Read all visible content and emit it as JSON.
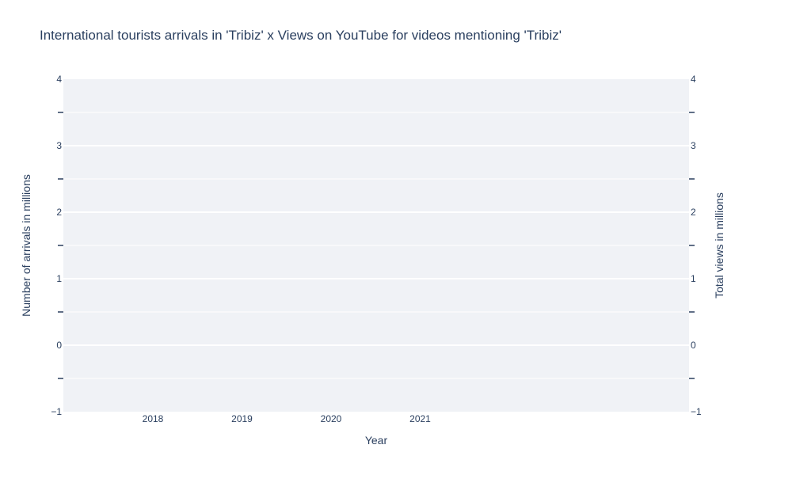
{
  "chart_data": {
    "type": "line",
    "title": "International tourists arrivals in 'Tribiz' x Views on YouTube for videos mentioning 'Tribiz'",
    "xlabel": "Year",
    "ylabel": "Number of arrivals in millions",
    "y2label": "Total views in millions",
    "x_ticks": [
      "2018",
      "2019",
      "2020",
      "2021"
    ],
    "y_ticks": [
      "−1",
      "0",
      "1",
      "2",
      "3",
      "4"
    ],
    "y2_ticks": [
      "−1",
      "0",
      "1",
      "2",
      "3",
      "4"
    ],
    "ylim": [
      -1,
      4
    ],
    "y2lim": [
      -1,
      4
    ],
    "grid": true,
    "series": []
  },
  "colors": {
    "plot_background": "#e5ecf6",
    "gridline": "#ffffff",
    "text": "#2a3f5f"
  }
}
